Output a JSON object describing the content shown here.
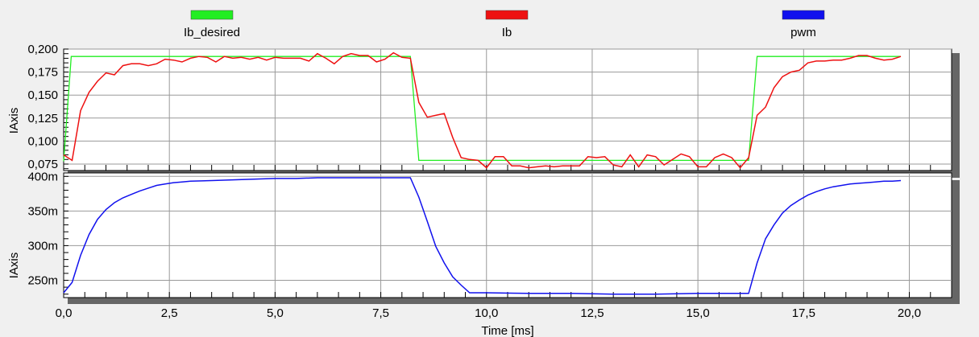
{
  "chart_data": {
    "type": "line",
    "xlabel": "Time [ms]",
    "xlim": [
      0,
      21
    ],
    "x_ticks": [
      "0,0",
      "2,5",
      "5,0",
      "7,5",
      "10,0",
      "12,5",
      "15,0",
      "17,5",
      "20,0"
    ],
    "legend": {
      "placement": "top",
      "items": [
        {
          "name": "Ib_desired",
          "color": "#22ee22"
        },
        {
          "name": "Ib",
          "color": "#ee1111"
        },
        {
          "name": "pwm",
          "color": "#1111ee"
        }
      ]
    },
    "grid": true,
    "panels": [
      {
        "ylabel": "IAxis",
        "ylim": [
          0.068,
          0.2
        ],
        "y_ticks": [
          "0,200",
          "0,175",
          "0,150",
          "0,125",
          "0,100",
          "0,075"
        ],
        "y_tick_values": [
          0.2,
          0.175,
          0.15,
          0.125,
          0.1,
          0.075
        ],
        "series": [
          {
            "name": "Ib_desired",
            "color": "#22ee22",
            "x": [
              0,
              0.18,
              8.2,
              8.4,
              16.2,
              16.4,
              19.8
            ],
            "y": [
              0.078,
              0.192,
              0.192,
              0.079,
              0.079,
              0.192,
              0.192
            ]
          },
          {
            "name": "Ib",
            "color": "#ee1111",
            "x": [
              0.0,
              0.2,
              0.4,
              0.6,
              0.8,
              1.0,
              1.2,
              1.4,
              1.6,
              1.8,
              2.0,
              2.2,
              2.4,
              2.6,
              2.8,
              3.0,
              3.2,
              3.4,
              3.6,
              3.8,
              4.0,
              4.2,
              4.4,
              4.6,
              4.8,
              5.0,
              5.2,
              5.4,
              5.6,
              5.8,
              6.0,
              6.2,
              6.4,
              6.6,
              6.8,
              7.0,
              7.2,
              7.4,
              7.6,
              7.8,
              8.0,
              8.2,
              8.4,
              8.6,
              8.8,
              9.0,
              9.2,
              9.4,
              9.6,
              9.8,
              10.0,
              10.2,
              10.4,
              10.6,
              10.8,
              11.0,
              11.2,
              11.4,
              11.6,
              11.8,
              12.0,
              12.2,
              12.4,
              12.6,
              12.8,
              13.0,
              13.2,
              13.4,
              13.6,
              13.8,
              14.0,
              14.2,
              14.4,
              14.6,
              14.8,
              15.0,
              15.2,
              15.4,
              15.6,
              15.8,
              16.0,
              16.2,
              16.4,
              16.6,
              16.8,
              17.0,
              17.2,
              17.4,
              17.6,
              17.8,
              18.0,
              18.2,
              18.4,
              18.6,
              18.8,
              19.0,
              19.2,
              19.4,
              19.6,
              19.8
            ],
            "y": [
              0.085,
              0.079,
              0.133,
              0.153,
              0.165,
              0.174,
              0.172,
              0.182,
              0.184,
              0.184,
              0.182,
              0.184,
              0.189,
              0.188,
              0.186,
              0.19,
              0.192,
              0.191,
              0.186,
              0.192,
              0.19,
              0.191,
              0.189,
              0.191,
              0.188,
              0.191,
              0.19,
              0.19,
              0.19,
              0.187,
              0.195,
              0.19,
              0.184,
              0.192,
              0.195,
              0.193,
              0.193,
              0.186,
              0.189,
              0.196,
              0.191,
              0.19,
              0.142,
              0.126,
              0.128,
              0.13,
              0.104,
              0.082,
              0.08,
              0.079,
              0.071,
              0.083,
              0.083,
              0.073,
              0.073,
              0.071,
              0.072,
              0.073,
              0.072,
              0.073,
              0.073,
              0.073,
              0.083,
              0.082,
              0.083,
              0.074,
              0.072,
              0.085,
              0.072,
              0.085,
              0.083,
              0.074,
              0.08,
              0.086,
              0.083,
              0.072,
              0.072,
              0.082,
              0.086,
              0.082,
              0.071,
              0.082,
              0.128,
              0.137,
              0.158,
              0.17,
              0.175,
              0.177,
              0.185,
              0.187,
              0.187,
              0.188,
              0.188,
              0.19,
              0.193,
              0.193,
              0.19,
              0.188,
              0.189,
              0.192
            ]
          }
        ]
      },
      {
        "ylabel": "IAxis",
        "ylim": [
          0.225,
          0.405
        ],
        "y_ticks": [
          "400m",
          "350m",
          "300m",
          "250m"
        ],
        "y_tick_values": [
          0.4,
          0.35,
          0.3,
          0.25
        ],
        "series": [
          {
            "name": "pwm",
            "color": "#1111ee",
            "x": [
              0.0,
              0.2,
              0.4,
              0.6,
              0.8,
              1.0,
              1.2,
              1.4,
              1.6,
              1.8,
              2.0,
              2.2,
              2.4,
              2.6,
              2.8,
              3.0,
              3.5,
              4.0,
              4.5,
              5.0,
              5.5,
              6.0,
              6.5,
              7.0,
              7.5,
              8.0,
              8.2,
              8.4,
              8.6,
              8.8,
              9.0,
              9.2,
              9.4,
              9.6,
              9.8,
              10.0,
              11.0,
              12.0,
              13.0,
              14.0,
              15.0,
              16.0,
              16.2,
              16.4,
              16.6,
              16.8,
              17.0,
              17.2,
              17.4,
              17.6,
              17.8,
              18.0,
              18.2,
              18.4,
              18.6,
              18.8,
              19.0,
              19.2,
              19.4,
              19.6,
              19.8
            ],
            "y": [
              0.232,
              0.247,
              0.286,
              0.316,
              0.338,
              0.352,
              0.362,
              0.369,
              0.374,
              0.379,
              0.383,
              0.387,
              0.389,
              0.391,
              0.392,
              0.393,
              0.394,
              0.395,
              0.396,
              0.397,
              0.397,
              0.398,
              0.398,
              0.398,
              0.398,
              0.398,
              0.398,
              0.37,
              0.335,
              0.299,
              0.275,
              0.255,
              0.243,
              0.232,
              0.232,
              0.232,
              0.231,
              0.231,
              0.23,
              0.23,
              0.231,
              0.231,
              0.231,
              0.275,
              0.31,
              0.33,
              0.347,
              0.358,
              0.366,
              0.373,
              0.378,
              0.382,
              0.385,
              0.387,
              0.389,
              0.39,
              0.391,
              0.392,
              0.393,
              0.393,
              0.394
            ]
          }
        ]
      }
    ]
  }
}
